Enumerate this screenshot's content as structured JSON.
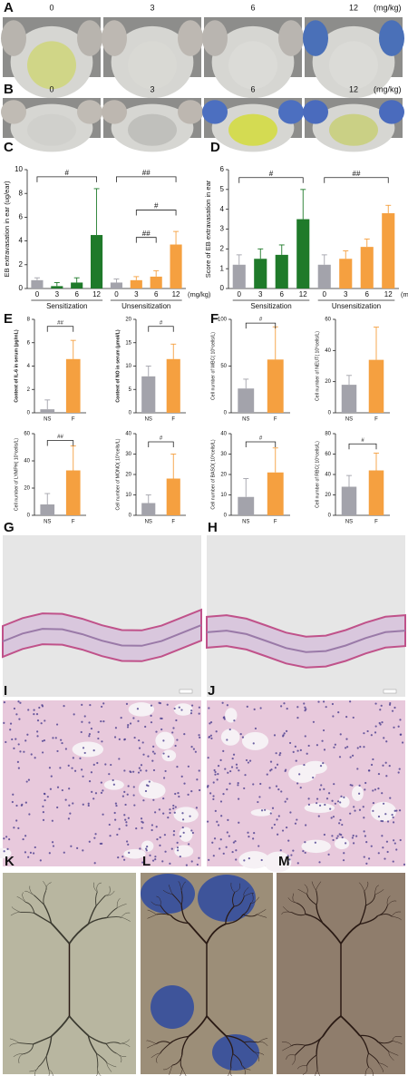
{
  "panels": {
    "A": {
      "label": "A",
      "doses": [
        "0",
        "3",
        "6",
        "12"
      ],
      "unit": "(mg/kg)"
    },
    "B": {
      "label": "B",
      "doses": [
        "0",
        "3",
        "6",
        "12"
      ],
      "unit": "(mg/kg)"
    },
    "G": {
      "label": "G"
    },
    "H": {
      "label": "H"
    },
    "I": {
      "label": "I"
    },
    "J": {
      "label": "J"
    },
    "K": {
      "label": "K"
    },
    "L": {
      "label": "L"
    },
    "M": {
      "label": "M"
    }
  },
  "chart_data": [
    {
      "type": "bar",
      "panel": "C",
      "ylabel": "EB extravasation in ear (ug/ear)",
      "categories": [
        "0",
        "3",
        "6",
        "12",
        "0",
        "3",
        "6",
        "12"
      ],
      "groups": [
        "Sensitization",
        "Unsensitization"
      ],
      "x_unit": "(mg/kg)",
      "values": [
        0.7,
        0.2,
        0.5,
        4.5,
        0.5,
        0.7,
        1.0,
        3.7
      ],
      "errors": [
        0.2,
        0.3,
        0.4,
        3.9,
        0.3,
        0.3,
        0.5,
        1.1
      ],
      "colors": [
        "#a3a3ab",
        "#1f7a2a",
        "#1f7a2a",
        "#1f7a2a",
        "#a3a3ab",
        "#f5a040",
        "#f5a040",
        "#f5a040"
      ],
      "ylim": [
        0,
        10
      ],
      "yticks": [
        0,
        2,
        4,
        6,
        8,
        10
      ],
      "annotations": [
        "#",
        "##",
        "#",
        "##"
      ]
    },
    {
      "type": "bar",
      "panel": "D",
      "ylabel": "Score of EB extravasation in ear",
      "categories": [
        "0",
        "3",
        "6",
        "12",
        "0",
        "3",
        "6",
        "12"
      ],
      "groups": [
        "Sensitization",
        "Unsensitization"
      ],
      "x_unit": "(mg/kg)",
      "values": [
        1.2,
        1.5,
        1.7,
        3.5,
        1.2,
        1.5,
        2.1,
        3.8
      ],
      "errors": [
        0.5,
        0.5,
        0.5,
        1.5,
        0.5,
        0.4,
        0.4,
        0.4
      ],
      "colors": [
        "#a3a3ab",
        "#1f7a2a",
        "#1f7a2a",
        "#1f7a2a",
        "#a3a3ab",
        "#f5a040",
        "#f5a040",
        "#f5a040"
      ],
      "ylim": [
        0,
        6
      ],
      "yticks": [
        0,
        1,
        2,
        3,
        4,
        5,
        6
      ],
      "annotations": [
        "#",
        "##"
      ]
    },
    {
      "type": "bar",
      "panel": "E",
      "ylabel": "Content of IL-6 in serum (pg/mL)",
      "categories": [
        "NS",
        "F"
      ],
      "values": [
        0.3,
        4.6
      ],
      "errors": [
        0.8,
        1.6
      ],
      "colors": [
        "#a3a3ab",
        "#f5a040"
      ],
      "ylim": [
        0,
        8
      ],
      "yticks": [
        0,
        2,
        4,
        6,
        8
      ],
      "annotations": [
        "##"
      ]
    },
    {
      "type": "bar",
      "ylabel": "Content of NO in serum (μmol/L)",
      "categories": [
        "NS",
        "F"
      ],
      "values": [
        7.8,
        11.5
      ],
      "errors": [
        2.2,
        3.2
      ],
      "colors": [
        "#a3a3ab",
        "#f5a040"
      ],
      "ylim": [
        0,
        20
      ],
      "yticks": [
        0,
        5,
        10,
        15,
        20
      ],
      "annotations": [
        "#"
      ]
    },
    {
      "type": "bar",
      "panel": "F",
      "ylabel": "Cell number of WBC( 10⁹cells/L)",
      "categories": [
        "NS",
        "F"
      ],
      "values": [
        26,
        57
      ],
      "errors": [
        10,
        35
      ],
      "colors": [
        "#a3a3ab",
        "#f5a040"
      ],
      "ylim": [
        0,
        100
      ],
      "yticks": [
        0,
        50,
        100
      ],
      "annotations": [
        "#"
      ]
    },
    {
      "type": "bar",
      "ylabel": "Cell number of NEUT( 10⁹cells/L)",
      "categories": [
        "NS",
        "F"
      ],
      "values": [
        18,
        34
      ],
      "errors": [
        6,
        21
      ],
      "colors": [
        "#a3a3ab",
        "#f5a040"
      ],
      "ylim": [
        0,
        60
      ],
      "yticks": [
        0,
        20,
        40,
        60
      ]
    },
    {
      "type": "bar",
      "ylabel": "Cell number of LYMPH( 10⁹cells/L)",
      "categories": [
        "NS",
        "F"
      ],
      "values": [
        8,
        33
      ],
      "errors": [
        8,
        18
      ],
      "colors": [
        "#a3a3ab",
        "#f5a040"
      ],
      "ylim": [
        0,
        60
      ],
      "yticks": [
        0,
        20,
        40,
        60
      ],
      "annotations": [
        "##"
      ]
    },
    {
      "type": "bar",
      "ylabel": "Cell number of MONO( 10⁹cells/L)",
      "categories": [
        "NS",
        "F"
      ],
      "values": [
        6,
        18
      ],
      "errors": [
        4,
        12
      ],
      "colors": [
        "#a3a3ab",
        "#f5a040"
      ],
      "ylim": [
        0,
        40
      ],
      "yticks": [
        0,
        10,
        20,
        30,
        40
      ],
      "annotations": [
        "#"
      ]
    },
    {
      "type": "bar",
      "ylabel": "Cell number of BASO( 10⁹cells/L)",
      "categories": [
        "NS",
        "F"
      ],
      "values": [
        9,
        21
      ],
      "errors": [
        9,
        12
      ],
      "colors": [
        "#a3a3ab",
        "#f5a040"
      ],
      "ylim": [
        0,
        40
      ],
      "yticks": [
        0,
        10,
        20,
        30,
        40
      ],
      "annotations": [
        "#"
      ]
    },
    {
      "type": "bar",
      "ylabel": "Cell number of RBC( 10⁹cells/L)",
      "categories": [
        "NS",
        "F"
      ],
      "values": [
        28,
        44
      ],
      "errors": [
        11,
        17
      ],
      "colors": [
        "#a3a3ab",
        "#f5a040"
      ],
      "ylim": [
        0,
        80
      ],
      "yticks": [
        0,
        20,
        40,
        60,
        80
      ],
      "annotations": [
        "#"
      ]
    }
  ]
}
